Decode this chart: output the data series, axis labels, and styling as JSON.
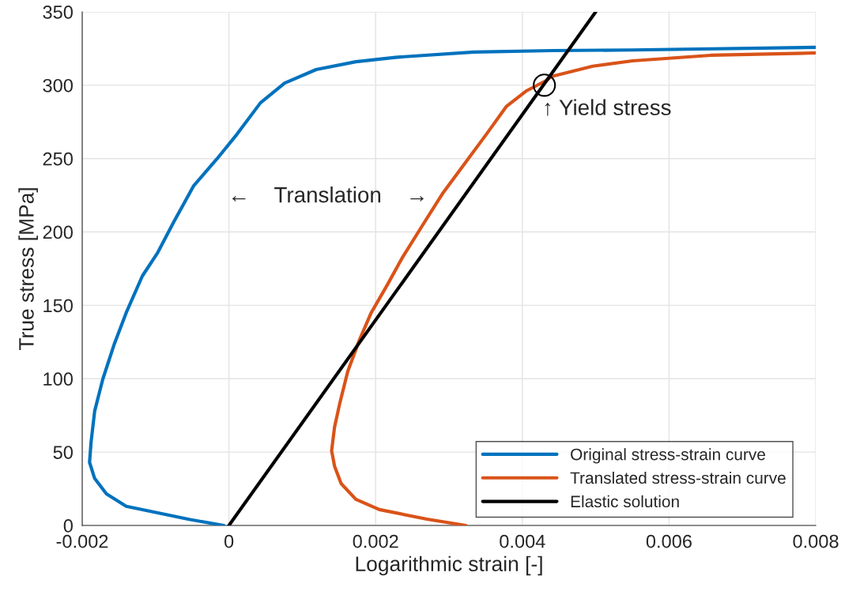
{
  "chart_data": {
    "type": "line",
    "xlabel": "Logarithmic strain [-]",
    "ylabel": "True stress [MPa]",
    "xlim": [
      -0.002,
      0.008
    ],
    "ylim": [
      0,
      350
    ],
    "xticks": [
      {
        "value": -0.002,
        "label": "-0.002"
      },
      0,
      0.002,
      0.004,
      0.006,
      0.008
    ],
    "yticks": [
      0,
      50,
      100,
      150,
      200,
      250,
      300,
      350
    ],
    "grid": true,
    "legend": "bottom right",
    "line_style": "solid",
    "marker": "none",
    "series": [
      {
        "name": "Original stress-strain curve",
        "color": "#0072bd",
        "x": [
          -7e-05,
          -0.00053,
          -0.0014,
          -0.00167,
          -0.00183,
          -0.0019,
          -0.00188,
          -0.00183,
          -0.00172,
          -0.00156,
          -0.0014,
          -0.00118,
          -0.00097,
          -0.00075,
          -0.00048,
          -0.00016,
          0.00011,
          0.00043,
          0.00076,
          0.00119,
          0.00173,
          0.00227,
          0.00334,
          0.00442,
          0.0055,
          0.008
        ],
        "values": [
          0,
          4,
          13,
          21.5,
          32,
          43,
          56.5,
          78,
          99.6,
          124,
          145,
          170,
          186,
          207,
          231.5,
          250,
          266.6,
          288,
          301.5,
          310.7,
          316,
          319,
          322.6,
          323.6,
          324,
          325.8
        ]
      },
      {
        "name": "Translated stress-strain curve",
        "color": "#d95319",
        "x": [
          0.00323,
          0.0027,
          0.00205,
          0.00173,
          0.00153,
          0.00144,
          0.0014,
          0.00144,
          0.00151,
          0.00162,
          0.00178,
          0.00194,
          0.00216,
          0.00237,
          0.00264,
          0.00291,
          0.00323,
          0.00351,
          0.00378,
          0.00405,
          0.00432,
          0.0044,
          0.00496,
          0.0055,
          0.00657,
          0.008
        ],
        "values": [
          0,
          4.3,
          10.8,
          17.8,
          28.5,
          40.4,
          51,
          67,
          83,
          105,
          126.5,
          145,
          164,
          183,
          204.6,
          226,
          247.7,
          266.6,
          285.4,
          296,
          303,
          306,
          313,
          316.6,
          320.4,
          322
        ]
      },
      {
        "name": "Elastic solution",
        "color": "#000000",
        "x": [
          0,
          0.005
        ],
        "values": [
          0,
          350
        ]
      },
      {
        "type": "scatter",
        "marker": "circle",
        "color": "#000000",
        "x": [
          0.0043
        ],
        "values": [
          300
        ]
      }
    ],
    "annotations": [
      {
        "text": "↑ Yield stress",
        "x": 0.0043,
        "y": 300
      },
      "←    Translation    →"
    ]
  }
}
